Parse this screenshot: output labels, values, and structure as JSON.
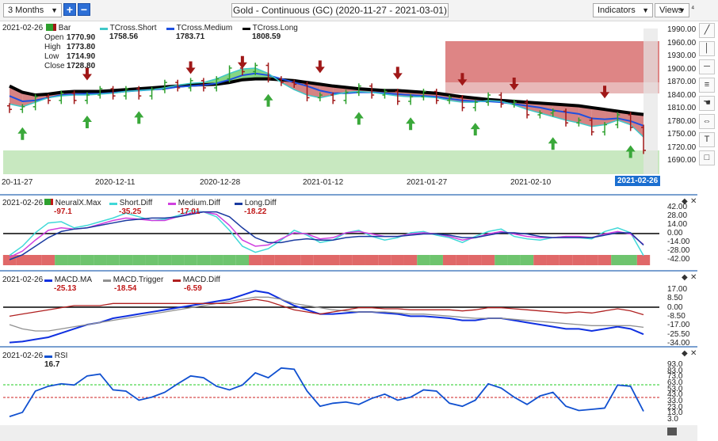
{
  "toolbar": {
    "period": "3 Months",
    "zoom_in": "+",
    "zoom_out": "−",
    "title": "Gold - Continuous (GC) (2020-11-27 - 2021-03-01)",
    "indicators": "Indicators",
    "views": "Views",
    "pin": "⁴"
  },
  "price_pane": {
    "date": "2021-02-26",
    "bar_label": "Bar",
    "ohlc": [
      {
        "label": "Open",
        "value": "1770.90"
      },
      {
        "label": "High",
        "value": "1773.80"
      },
      {
        "label": "Low",
        "value": "1714.90"
      },
      {
        "label": "Close",
        "value": "1728.80"
      }
    ],
    "legend": [
      {
        "name": "TCross.Short",
        "value": "1758.56",
        "color": "#40c8c8"
      },
      {
        "name": "TCross.Medium",
        "value": "1783.71",
        "color": "#1e50e0"
      },
      {
        "name": "TCross.Long",
        "value": "1808.59",
        "color": "#000000"
      }
    ],
    "y_ticks": [
      "1990.00",
      "1960.00",
      "1930.00",
      "1900.00",
      "1870.00",
      "1840.00",
      "1810.00",
      "1780.00",
      "1750.00",
      "1720.00",
      "1690.00"
    ],
    "x_ticks": [
      "20-11-27",
      "2020-12-11",
      "2020-12-28",
      "2021-01-12",
      "2021-01-27",
      "2021-02-10"
    ],
    "x_highlight": "2021-02-26"
  },
  "diff_pane": {
    "date": "2021-02-26",
    "legend": [
      {
        "name": "NeuralX.Max",
        "value": "-97.1",
        "color": "#c01818"
      },
      {
        "name": "Short.Diff",
        "value": "-35.25",
        "color": "#40d8d8"
      },
      {
        "name": "Medium.Diff",
        "value": "-17.01",
        "color": "#d040e0"
      },
      {
        "name": "Long.Diff",
        "value": "-18.22",
        "color": "#1a3aa0"
      }
    ],
    "y_ticks": [
      "42.00",
      "28.00",
      "14.00",
      "0.00",
      "-14.00",
      "-28.00",
      "-42.00"
    ]
  },
  "macd_pane": {
    "date": "2021-02-26",
    "legend": [
      {
        "name": "MACD.MA",
        "value": "-25.13",
        "color": "#1030e0"
      },
      {
        "name": "MACD.Trigger",
        "value": "-18.54",
        "color": "#909090"
      },
      {
        "name": "MACD.Diff",
        "value": "-6.59",
        "color": "#b02020"
      }
    ],
    "y_ticks": [
      "17.00",
      "8.50",
      "0.00",
      "-8.50",
      "-17.00",
      "-25.50",
      "-34.00"
    ]
  },
  "rsi_pane": {
    "date": "2021-02-26",
    "legend": [
      {
        "name": "RSI",
        "value": "16.7",
        "color": "#1050d0"
      }
    ],
    "y_ticks": [
      "93.0",
      "83.0",
      "73.0",
      "63.0",
      "53.0",
      "43.0",
      "33.0",
      "23.0",
      "13.0",
      "3.0"
    ]
  },
  "colors": {
    "up": "#2ea02e",
    "down": "#a01818",
    "support_zone": "#c8e8c0",
    "resistance_zone": "#d87070"
  },
  "chart_data": [
    {
      "type": "line",
      "title": "Gold - Continuous (GC)",
      "ylim": [
        1690,
        2000
      ],
      "x_range": [
        "2020-11-27",
        "2021-03-01"
      ],
      "series": [
        {
          "name": "TCross.Long",
          "values": [
            1872,
            1858,
            1852,
            1854,
            1858,
            1860,
            1860,
            1860,
            1862,
            1864,
            1866,
            1868,
            1870,
            1872,
            1874,
            1875,
            1876,
            1880,
            1886,
            1888,
            1888,
            1886,
            1884,
            1880,
            1876,
            1872,
            1869,
            1866,
            1864,
            1862,
            1862,
            1860,
            1858,
            1856,
            1852,
            1848,
            1845,
            1842,
            1840,
            1838,
            1836,
            1834,
            1832,
            1830,
            1828,
            1824,
            1820,
            1816,
            1812,
            1808.59
          ]
        },
        {
          "name": "TCross.Medium",
          "values": [
            1850,
            1838,
            1840,
            1846,
            1852,
            1854,
            1855,
            1855,
            1857,
            1860,
            1862,
            1864,
            1866,
            1870,
            1872,
            1874,
            1878,
            1886,
            1896,
            1900,
            1896,
            1888,
            1880,
            1872,
            1862,
            1856,
            1856,
            1858,
            1858,
            1856,
            1854,
            1852,
            1850,
            1848,
            1844,
            1840,
            1838,
            1838,
            1836,
            1832,
            1828,
            1824,
            1818,
            1814,
            1810,
            1800,
            1798,
            1800,
            1794,
            1783.71
          ]
        },
        {
          "name": "TCross.Short",
          "values": [
            1832,
            1826,
            1836,
            1846,
            1850,
            1852,
            1852,
            1854,
            1856,
            1860,
            1862,
            1864,
            1868,
            1874,
            1878,
            1880,
            1888,
            1900,
            1910,
            1912,
            1900,
            1880,
            1864,
            1852,
            1846,
            1852,
            1858,
            1860,
            1858,
            1854,
            1850,
            1848,
            1848,
            1846,
            1840,
            1836,
            1836,
            1840,
            1838,
            1830,
            1820,
            1812,
            1804,
            1796,
            1790,
            1782,
            1786,
            1796,
            1786,
            1758.56
          ]
        }
      ]
    },
    {
      "type": "line",
      "ylim": [
        -42,
        42
      ],
      "series": [
        {
          "name": "Short.Diff",
          "values": [
            -35,
            -20,
            2,
            18,
            20,
            10,
            14,
            20,
            26,
            34,
            28,
            22,
            24,
            30,
            38,
            36,
            28,
            6,
            -20,
            -30,
            -24,
            -10,
            6,
            -2,
            -14,
            -10,
            2,
            6,
            -4,
            -10,
            -6,
            2,
            4,
            -2,
            -6,
            -14,
            -4,
            4,
            8,
            -4,
            -8,
            -10,
            -6,
            -4,
            -6,
            -8,
            4,
            10,
            2,
            -35.25
          ]
        },
        {
          "name": "Medium.Diff",
          "values": [
            -38,
            -28,
            -10,
            6,
            10,
            8,
            10,
            16,
            22,
            26,
            24,
            22,
            22,
            28,
            34,
            36,
            32,
            14,
            -10,
            -20,
            -18,
            -8,
            2,
            0,
            -8,
            -6,
            2,
            4,
            0,
            -4,
            -4,
            0,
            2,
            0,
            -4,
            -10,
            -6,
            0,
            4,
            0,
            -4,
            -6,
            -6,
            -4,
            -4,
            -6,
            0,
            4,
            0,
            -17.01
          ]
        },
        {
          "name": "Long.Diff",
          "values": [
            -42,
            -34,
            -20,
            -6,
            4,
            8,
            10,
            14,
            18,
            22,
            24,
            26,
            26,
            28,
            32,
            36,
            36,
            28,
            10,
            -6,
            -14,
            -14,
            -10,
            -8,
            -10,
            -10,
            -6,
            -4,
            -4,
            -4,
            -4,
            -2,
            0,
            0,
            -2,
            -6,
            -6,
            -2,
            2,
            2,
            0,
            -4,
            -6,
            -6,
            -6,
            -6,
            -2,
            2,
            2,
            -18.22
          ]
        }
      ]
    },
    {
      "type": "line",
      "ylim": [
        -34,
        17
      ],
      "series": [
        {
          "name": "MACD.MA",
          "values": [
            -33,
            -32,
            -30,
            -28,
            -24,
            -20,
            -16,
            -14,
            -10,
            -8,
            -6,
            -4,
            -2,
            0,
            2,
            4,
            6,
            8,
            12,
            16,
            14,
            8,
            2,
            -2,
            -6,
            -6,
            -5,
            -4,
            -4,
            -5,
            -6,
            -8,
            -8,
            -9,
            -10,
            -12,
            -12,
            -10,
            -10,
            -12,
            -14,
            -16,
            -18,
            -20,
            -20,
            -22,
            -20,
            -18,
            -20,
            -25.13
          ]
        },
        {
          "name": "MACD.Trigger",
          "values": [
            -16,
            -20,
            -22,
            -22,
            -20,
            -18,
            -16,
            -14,
            -12,
            -10,
            -8,
            -6,
            -4,
            -2,
            0,
            2,
            4,
            6,
            8,
            10,
            10,
            8,
            4,
            2,
            0,
            -2,
            -3,
            -4,
            -4,
            -4,
            -5,
            -6,
            -6,
            -7,
            -8,
            -9,
            -10,
            -10,
            -10,
            -11,
            -12,
            -13,
            -14,
            -15,
            -16,
            -17,
            -17,
            -17,
            -17,
            -18.54
          ]
        },
        {
          "name": "MACD.Diff",
          "values": [
            -8,
            -6,
            -4,
            -2,
            0,
            2,
            2,
            2,
            4,
            4,
            4,
            4,
            4,
            4,
            4,
            4,
            4,
            4,
            6,
            8,
            6,
            2,
            -2,
            -4,
            -6,
            -4,
            -2,
            0,
            0,
            -1,
            -1,
            -2,
            -2,
            -2,
            -2,
            -3,
            -2,
            0,
            0,
            -1,
            -2,
            -3,
            -4,
            -5,
            -4,
            -5,
            -3,
            -1,
            -3,
            -6.59
          ]
        }
      ]
    },
    {
      "type": "line",
      "ylim": [
        3,
        93
      ],
      "series": [
        {
          "name": "RSI",
          "values": [
            8,
            15,
            50,
            58,
            62,
            60,
            75,
            78,
            52,
            50,
            35,
            40,
            48,
            62,
            75,
            72,
            58,
            52,
            60,
            80,
            72,
            88,
            86,
            50,
            25,
            30,
            32,
            28,
            38,
            45,
            35,
            40,
            52,
            50,
            30,
            25,
            35,
            62,
            55,
            40,
            28,
            42,
            48,
            25,
            18,
            20,
            22,
            60,
            58,
            16.7
          ]
        }
      ]
    }
  ]
}
